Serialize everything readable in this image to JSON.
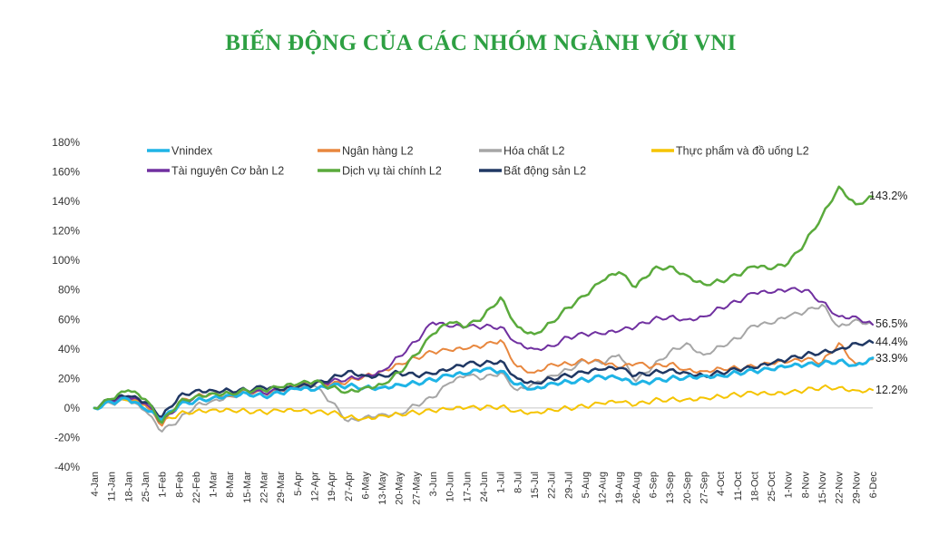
{
  "title": "BIẾN ĐỘNG CỦA CÁC NHÓM NGÀNH VỚI VNI",
  "chart_data": {
    "type": "line",
    "title": "BIẾN ĐỘNG CỦA CÁC NHÓM NGÀNH VỚI VNI",
    "ylim": [
      -40,
      180
    ],
    "y_unit": "%",
    "yticks": [
      "180%",
      "160%",
      "140%",
      "120%",
      "100%",
      "80%",
      "60%",
      "40%",
      "20%",
      "0%",
      "-20%",
      "-40%"
    ],
    "xticks": [
      "4-Jan",
      "11-Jan",
      "18-Jan",
      "25-Jan",
      "1-Feb",
      "8-Feb",
      "22-Feb",
      "1-Mar",
      "8-Mar",
      "15-Mar",
      "22-Mar",
      "29-Mar",
      "5-Apr",
      "12-Apr",
      "19-Apr",
      "27-Apr",
      "6-May",
      "13-May",
      "20-May",
      "27-May",
      "3-Jun",
      "10-Jun",
      "17-Jun",
      "24-Jun",
      "1-Jul",
      "8-Jul",
      "15-Jul",
      "22-Jul",
      "29-Jul",
      "5-Aug",
      "12-Aug",
      "19-Aug",
      "26-Aug",
      "6-Sep",
      "13-Sep",
      "20-Sep",
      "27-Sep",
      "4-Oct",
      "11-Oct",
      "18-Oct",
      "25-Oct",
      "1-Nov",
      "8-Nov",
      "15-Nov",
      "22-Nov",
      "29-Nov",
      "6-Dec"
    ],
    "legend_position": "top",
    "zero_line": true,
    "series": [
      {
        "name": "Vnindex",
        "color": "#1fb4e6",
        "width": 3,
        "end_label": "33.9%",
        "values": [
          0,
          4,
          6,
          -1,
          -8,
          2,
          5,
          7,
          9,
          10,
          8,
          10,
          13,
          12,
          15,
          15,
          14,
          14,
          16,
          17,
          19,
          22,
          23,
          26,
          25,
          16,
          13,
          17,
          18,
          19,
          21,
          20,
          16,
          18,
          20,
          21,
          22,
          22,
          24,
          25,
          26,
          28,
          29,
          30,
          32,
          29,
          33.9
        ]
      },
      {
        "name": "Ngân hàng L2",
        "color": "#e8873e",
        "width": 2,
        "end_label": "",
        "values": [
          0,
          5,
          7,
          2,
          -12,
          4,
          8,
          10,
          8,
          12,
          10,
          12,
          15,
          17,
          16,
          18,
          22,
          25,
          30,
          34,
          38,
          39,
          40,
          42,
          46,
          28,
          24,
          30,
          30,
          32,
          31,
          27,
          30,
          28,
          30,
          26,
          25,
          27,
          27,
          28,
          30,
          31,
          33,
          31,
          44,
          30,
          33
        ]
      },
      {
        "name": "Hóa chất L2",
        "color": "#a6a6a6",
        "width": 2,
        "end_label": "",
        "values": [
          0,
          3,
          5,
          -2,
          -16,
          -8,
          2,
          5,
          8,
          10,
          12,
          10,
          13,
          15,
          4,
          -9,
          -6,
          -4,
          -4,
          2,
          7,
          17,
          22,
          20,
          24,
          12,
          17,
          22,
          26,
          32,
          30,
          36,
          18,
          28,
          38,
          44,
          36,
          42,
          47,
          56,
          57,
          62,
          65,
          70,
          55,
          60,
          56.5
        ]
      },
      {
        "name": "Thực phẩm và đồ uống L2",
        "color": "#f5c400",
        "width": 2,
        "end_label": "12.2%",
        "values": [
          0,
          4,
          5,
          2,
          -10,
          -4,
          -2,
          -1,
          -1,
          -2,
          -3,
          -2,
          -2,
          -3,
          -3,
          -6,
          -7,
          -5,
          -4,
          -3,
          -2,
          -1,
          0,
          0,
          1,
          -2,
          -3,
          -1,
          0,
          1,
          3,
          4,
          2,
          5,
          6,
          6,
          7,
          8,
          9,
          10,
          9,
          10,
          12,
          14,
          14,
          12,
          12.2
        ]
      },
      {
        "name": "Tài nguyên Cơ bản L2",
        "color": "#7030a0",
        "width": 2,
        "end_label": "56.5%",
        "values": [
          0,
          5,
          7,
          3,
          -10,
          2,
          8,
          10,
          10,
          12,
          10,
          12,
          14,
          16,
          18,
          20,
          22,
          25,
          35,
          45,
          58,
          55,
          55,
          55,
          55,
          44,
          40,
          42,
          48,
          50,
          50,
          52,
          55,
          60,
          62,
          60,
          62,
          68,
          72,
          78,
          78,
          80,
          80,
          72,
          62,
          62,
          56.5
        ]
      },
      {
        "name": "Dịch vụ tài chính L2",
        "color": "#5aaa3c",
        "width": 2.5,
        "end_label": "143.2%",
        "values": [
          0,
          6,
          12,
          6,
          -10,
          4,
          8,
          10,
          10,
          12,
          12,
          14,
          16,
          18,
          14,
          11,
          14,
          16,
          24,
          36,
          50,
          58,
          55,
          62,
          75,
          55,
          50,
          58,
          68,
          76,
          86,
          92,
          82,
          94,
          96,
          90,
          84,
          86,
          90,
          96,
          94,
          98,
          112,
          130,
          150,
          138,
          143.2
        ]
      },
      {
        "name": "Bất động sản L2",
        "color": "#203864",
        "width": 2.5,
        "end_label": "44.4%",
        "values": [
          0,
          6,
          8,
          4,
          -6,
          8,
          12,
          12,
          12,
          12,
          14,
          12,
          14,
          16,
          20,
          25,
          22,
          22,
          24,
          22,
          23,
          26,
          30,
          30,
          32,
          20,
          17,
          20,
          22,
          24,
          26,
          27,
          22,
          24,
          26,
          24,
          22,
          24,
          26,
          27,
          30,
          33,
          36,
          38,
          40,
          44,
          44.4
        ]
      }
    ]
  }
}
